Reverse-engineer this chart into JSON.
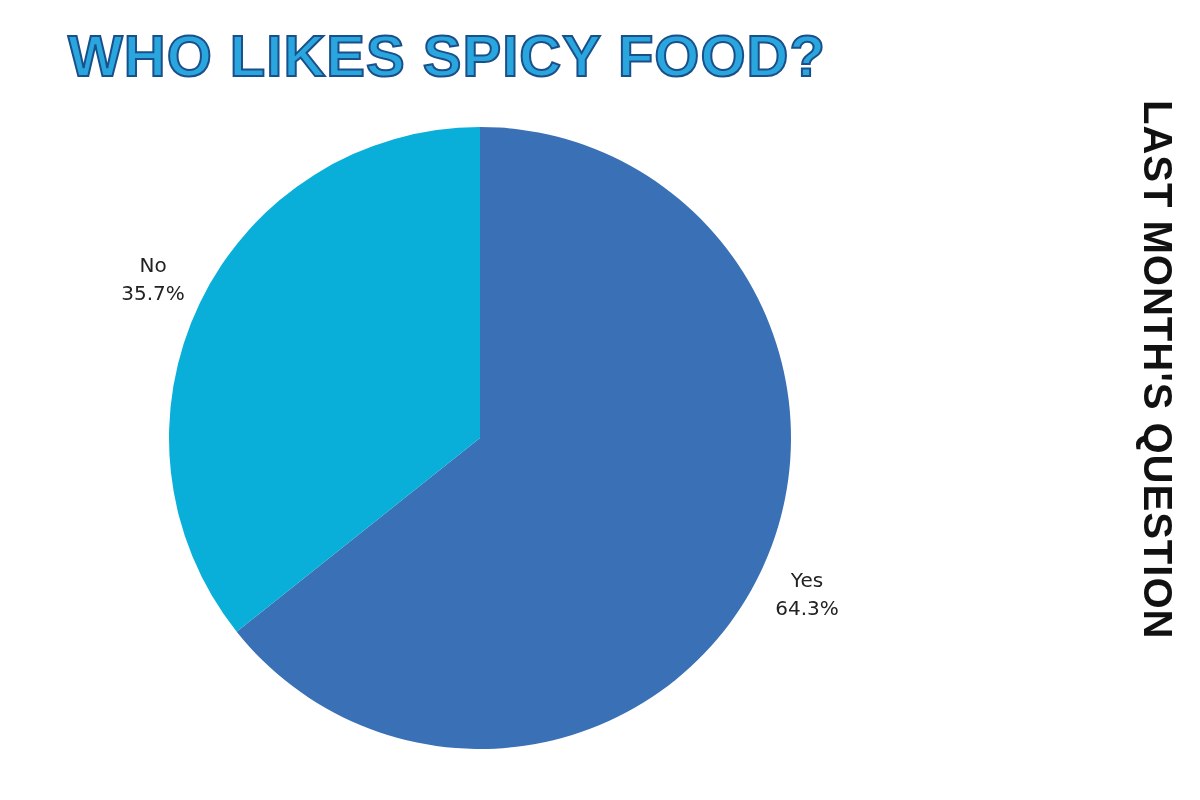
{
  "chart_data": {
    "type": "pie",
    "title": "WHO LIKES SPICY FOOD?",
    "subtitle": "LAST MONTH'S QUESTION",
    "categories": [
      "Yes",
      "No"
    ],
    "values": [
      64.3,
      35.7
    ],
    "colors": [
      "#3a70b5",
      "#0aafd9"
    ],
    "value_labels": [
      "64.3%",
      "35.7%"
    ],
    "legend": false
  }
}
